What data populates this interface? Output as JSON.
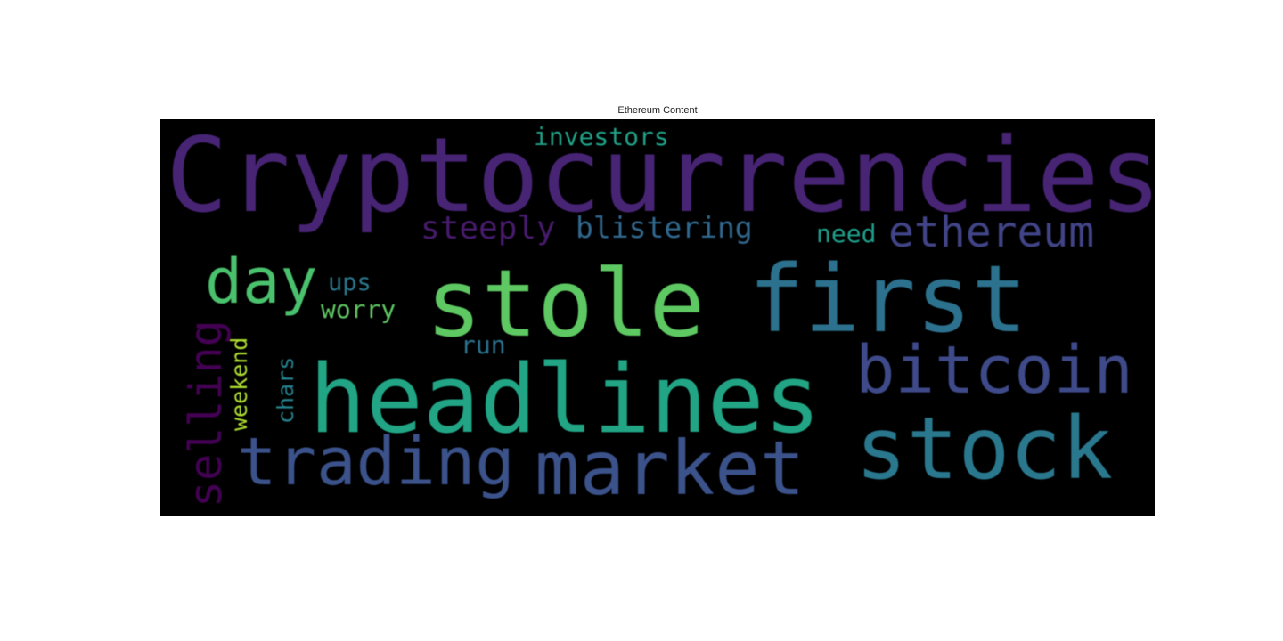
{
  "chart_data": {
    "type": "wordcloud",
    "title": "Ethereum Content",
    "background": "#000000",
    "colormap": "viridis",
    "words": [
      {
        "text": "Cryptocurrencies",
        "color": "#482475",
        "orientation": "horizontal"
      },
      {
        "text": "stole",
        "color": "#5ec962",
        "orientation": "horizontal"
      },
      {
        "text": "first",
        "color": "#2c728e",
        "orientation": "horizontal"
      },
      {
        "text": "headlines",
        "color": "#21a585",
        "orientation": "horizontal"
      },
      {
        "text": "stock",
        "color": "#2a788e",
        "orientation": "horizontal"
      },
      {
        "text": "market",
        "color": "#3b528b",
        "orientation": "horizontal"
      },
      {
        "text": "trading",
        "color": "#3b528b",
        "orientation": "horizontal"
      },
      {
        "text": "bitcoin",
        "color": "#3e4a89",
        "orientation": "horizontal"
      },
      {
        "text": "ethereum",
        "color": "#414487",
        "orientation": "horizontal"
      },
      {
        "text": "day",
        "color": "#4ac16d",
        "orientation": "horizontal"
      },
      {
        "text": "selling",
        "color": "#440154",
        "orientation": "vertical"
      },
      {
        "text": "steeply",
        "color": "#481b6d",
        "orientation": "horizontal"
      },
      {
        "text": "blistering",
        "color": "#31688e",
        "orientation": "horizontal"
      },
      {
        "text": "investors",
        "color": "#1fa187",
        "orientation": "horizontal"
      },
      {
        "text": "need",
        "color": "#1f9e89",
        "orientation": "horizontal"
      },
      {
        "text": "ups",
        "color": "#2a788e",
        "orientation": "horizontal"
      },
      {
        "text": "worry",
        "color": "#5ec962",
        "orientation": "horizontal"
      },
      {
        "text": "run",
        "color": "#2c728e",
        "orientation": "horizontal"
      },
      {
        "text": "weekend",
        "color": "#addc30",
        "orientation": "vertical"
      },
      {
        "text": "chars",
        "color": "#26828e",
        "orientation": "vertical"
      }
    ]
  }
}
